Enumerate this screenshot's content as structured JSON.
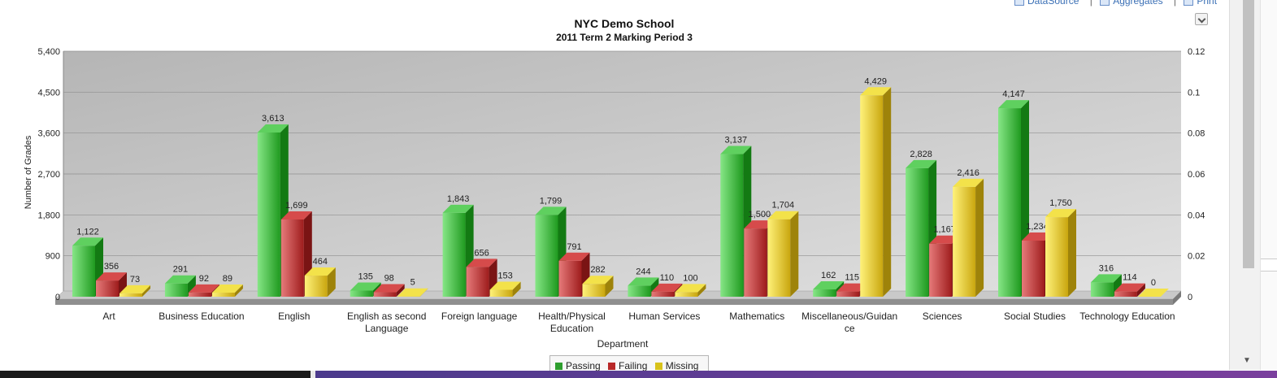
{
  "toolbar": {
    "datasource_label": "DataSource",
    "aggregates_label": "Aggregates",
    "print_label": "Print"
  },
  "chart_data": {
    "type": "bar",
    "title": "NYC Demo School",
    "subtitle": "2011 Term 2 Marking Period 3",
    "xlabel": "Department",
    "ylabel": "Number of Grades",
    "ylim": [
      0,
      5400
    ],
    "yticks": [
      "0",
      "900",
      "1,800",
      "2,700",
      "3,600",
      "4,500",
      "5,400"
    ],
    "y2ticks": [
      "0",
      "0.02",
      "0.04",
      "0.06",
      "0.08",
      "0.1",
      "0.12"
    ],
    "grid": true,
    "legend_position": "bottom",
    "categories": [
      "Art",
      "Business Education",
      "English",
      "English as second Language",
      "Foreign language",
      "Health/Physical Education",
      "Human Services",
      "Mathematics",
      "Miscellaneous/Guidance",
      "Sciences",
      "Social Studies",
      "Technology Education"
    ],
    "category_lines": [
      [
        "Art"
      ],
      [
        "Business Education"
      ],
      [
        "English"
      ],
      [
        "English as second",
        "Language"
      ],
      [
        "Foreign language"
      ],
      [
        "Health/Physical",
        "Education"
      ],
      [
        "Human Services"
      ],
      [
        "Mathematics"
      ],
      [
        "Miscellaneous/Guidan",
        "ce"
      ],
      [
        "Sciences"
      ],
      [
        "Social Studies"
      ],
      [
        "Technology Education"
      ]
    ],
    "series": [
      {
        "name": "Passing",
        "color": "#2e9e2e",
        "values": [
          1122,
          291,
          3613,
          135,
          1843,
          1799,
          244,
          3137,
          162,
          2828,
          4147,
          316
        ]
      },
      {
        "name": "Failing",
        "color": "#b82828",
        "values": [
          356,
          92,
          1699,
          98,
          656,
          791,
          110,
          1500,
          115,
          1167,
          1234,
          114
        ]
      },
      {
        "name": "Missing",
        "color": "#d8c21a",
        "values": [
          73,
          89,
          464,
          5,
          153,
          282,
          100,
          1704,
          4429,
          2416,
          1750,
          0
        ]
      }
    ]
  }
}
